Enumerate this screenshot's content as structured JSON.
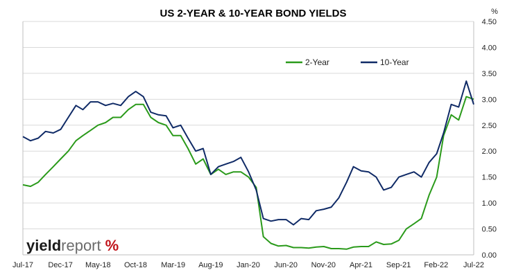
{
  "chart_data": {
    "type": "line",
    "title": "US 2-YEAR & 10-YEAR BOND YIELDS",
    "y_unit": "%",
    "ylim": [
      0,
      4.5
    ],
    "y_ticks": [
      "0.00",
      "0.50",
      "1.00",
      "1.50",
      "2.00",
      "2.50",
      "3.00",
      "3.50",
      "4.00",
      "4.50"
    ],
    "x_ticks": [
      "Jul-17",
      "Dec-17",
      "May-18",
      "Oct-18",
      "Mar-19",
      "Aug-19",
      "Jan-20",
      "Jun-20",
      "Nov-20",
      "Apr-21",
      "Sep-21",
      "Feb-22",
      "Jul-22"
    ],
    "grid": "horizontal",
    "legend_position": "top-right",
    "colors": {
      "two_year": "#2a9a1a",
      "ten_year": "#0f2a66"
    },
    "series": [
      {
        "name": "2-Year",
        "key": "two_year",
        "points": [
          [
            "2017-07",
            1.35
          ],
          [
            "2017-08",
            1.32
          ],
          [
            "2017-09",
            1.4
          ],
          [
            "2017-10",
            1.55
          ],
          [
            "2017-11",
            1.7
          ],
          [
            "2017-12",
            1.85
          ],
          [
            "2018-01",
            2.0
          ],
          [
            "2018-02",
            2.2
          ],
          [
            "2018-03",
            2.3
          ],
          [
            "2018-04",
            2.4
          ],
          [
            "2018-05",
            2.5
          ],
          [
            "2018-06",
            2.55
          ],
          [
            "2018-07",
            2.65
          ],
          [
            "2018-08",
            2.65
          ],
          [
            "2018-09",
            2.8
          ],
          [
            "2018-10",
            2.9
          ],
          [
            "2018-11",
            2.9
          ],
          [
            "2018-12",
            2.65
          ],
          [
            "2019-01",
            2.55
          ],
          [
            "2019-02",
            2.5
          ],
          [
            "2019-03",
            2.3
          ],
          [
            "2019-04",
            2.3
          ],
          [
            "2019-05",
            2.05
          ],
          [
            "2019-06",
            1.75
          ],
          [
            "2019-07",
            1.85
          ],
          [
            "2019-08",
            1.55
          ],
          [
            "2019-09",
            1.65
          ],
          [
            "2019-10",
            1.55
          ],
          [
            "2019-11",
            1.6
          ],
          [
            "2019-12",
            1.6
          ],
          [
            "2020-01",
            1.5
          ],
          [
            "2020-02",
            1.3
          ],
          [
            "2020-03",
            0.35
          ],
          [
            "2020-04",
            0.22
          ],
          [
            "2020-05",
            0.17
          ],
          [
            "2020-06",
            0.18
          ],
          [
            "2020-07",
            0.14
          ],
          [
            "2020-08",
            0.14
          ],
          [
            "2020-09",
            0.13
          ],
          [
            "2020-10",
            0.15
          ],
          [
            "2020-11",
            0.16
          ],
          [
            "2020-12",
            0.12
          ],
          [
            "2021-01",
            0.12
          ],
          [
            "2021-02",
            0.11
          ],
          [
            "2021-03",
            0.15
          ],
          [
            "2021-04",
            0.16
          ],
          [
            "2021-05",
            0.16
          ],
          [
            "2021-06",
            0.25
          ],
          [
            "2021-07",
            0.2
          ],
          [
            "2021-08",
            0.21
          ],
          [
            "2021-09",
            0.28
          ],
          [
            "2021-10",
            0.5
          ],
          [
            "2021-11",
            0.6
          ],
          [
            "2021-12",
            0.7
          ],
          [
            "2022-01",
            1.15
          ],
          [
            "2022-02",
            1.5
          ],
          [
            "2022-03",
            2.3
          ],
          [
            "2022-04",
            2.7
          ],
          [
            "2022-05",
            2.6
          ],
          [
            "2022-06",
            3.05
          ],
          [
            "2022-07",
            3.0
          ]
        ]
      },
      {
        "name": "10-Year",
        "key": "ten_year",
        "points": [
          [
            "2017-07",
            2.28
          ],
          [
            "2017-08",
            2.2
          ],
          [
            "2017-09",
            2.25
          ],
          [
            "2017-10",
            2.38
          ],
          [
            "2017-11",
            2.35
          ],
          [
            "2017-12",
            2.42
          ],
          [
            "2018-01",
            2.65
          ],
          [
            "2018-02",
            2.88
          ],
          [
            "2018-03",
            2.8
          ],
          [
            "2018-04",
            2.95
          ],
          [
            "2018-05",
            2.95
          ],
          [
            "2018-06",
            2.88
          ],
          [
            "2018-07",
            2.92
          ],
          [
            "2018-08",
            2.88
          ],
          [
            "2018-09",
            3.05
          ],
          [
            "2018-10",
            3.15
          ],
          [
            "2018-11",
            3.05
          ],
          [
            "2018-12",
            2.75
          ],
          [
            "2019-01",
            2.7
          ],
          [
            "2019-02",
            2.68
          ],
          [
            "2019-03",
            2.45
          ],
          [
            "2019-04",
            2.5
          ],
          [
            "2019-05",
            2.25
          ],
          [
            "2019-06",
            2.0
          ],
          [
            "2019-07",
            2.05
          ],
          [
            "2019-08",
            1.55
          ],
          [
            "2019-09",
            1.7
          ],
          [
            "2019-10",
            1.75
          ],
          [
            "2019-11",
            1.8
          ],
          [
            "2019-12",
            1.88
          ],
          [
            "2020-01",
            1.6
          ],
          [
            "2020-02",
            1.25
          ],
          [
            "2020-03",
            0.7
          ],
          [
            "2020-04",
            0.65
          ],
          [
            "2020-05",
            0.68
          ],
          [
            "2020-06",
            0.68
          ],
          [
            "2020-07",
            0.58
          ],
          [
            "2020-08",
            0.7
          ],
          [
            "2020-09",
            0.68
          ],
          [
            "2020-10",
            0.85
          ],
          [
            "2020-11",
            0.88
          ],
          [
            "2020-12",
            0.92
          ],
          [
            "2021-01",
            1.1
          ],
          [
            "2021-02",
            1.4
          ],
          [
            "2021-03",
            1.7
          ],
          [
            "2021-04",
            1.62
          ],
          [
            "2021-05",
            1.6
          ],
          [
            "2021-06",
            1.5
          ],
          [
            "2021-07",
            1.25
          ],
          [
            "2021-08",
            1.3
          ],
          [
            "2021-09",
            1.5
          ],
          [
            "2021-10",
            1.55
          ],
          [
            "2021-11",
            1.6
          ],
          [
            "2021-12",
            1.5
          ],
          [
            "2022-01",
            1.78
          ],
          [
            "2022-02",
            1.95
          ],
          [
            "2022-03",
            2.35
          ],
          [
            "2022-04",
            2.9
          ],
          [
            "2022-05",
            2.85
          ],
          [
            "2022-06",
            3.35
          ],
          [
            "2022-07",
            2.9
          ]
        ]
      }
    ]
  },
  "logo": {
    "word_dark": "yield",
    "word_light": "report",
    "symbol": "%"
  }
}
